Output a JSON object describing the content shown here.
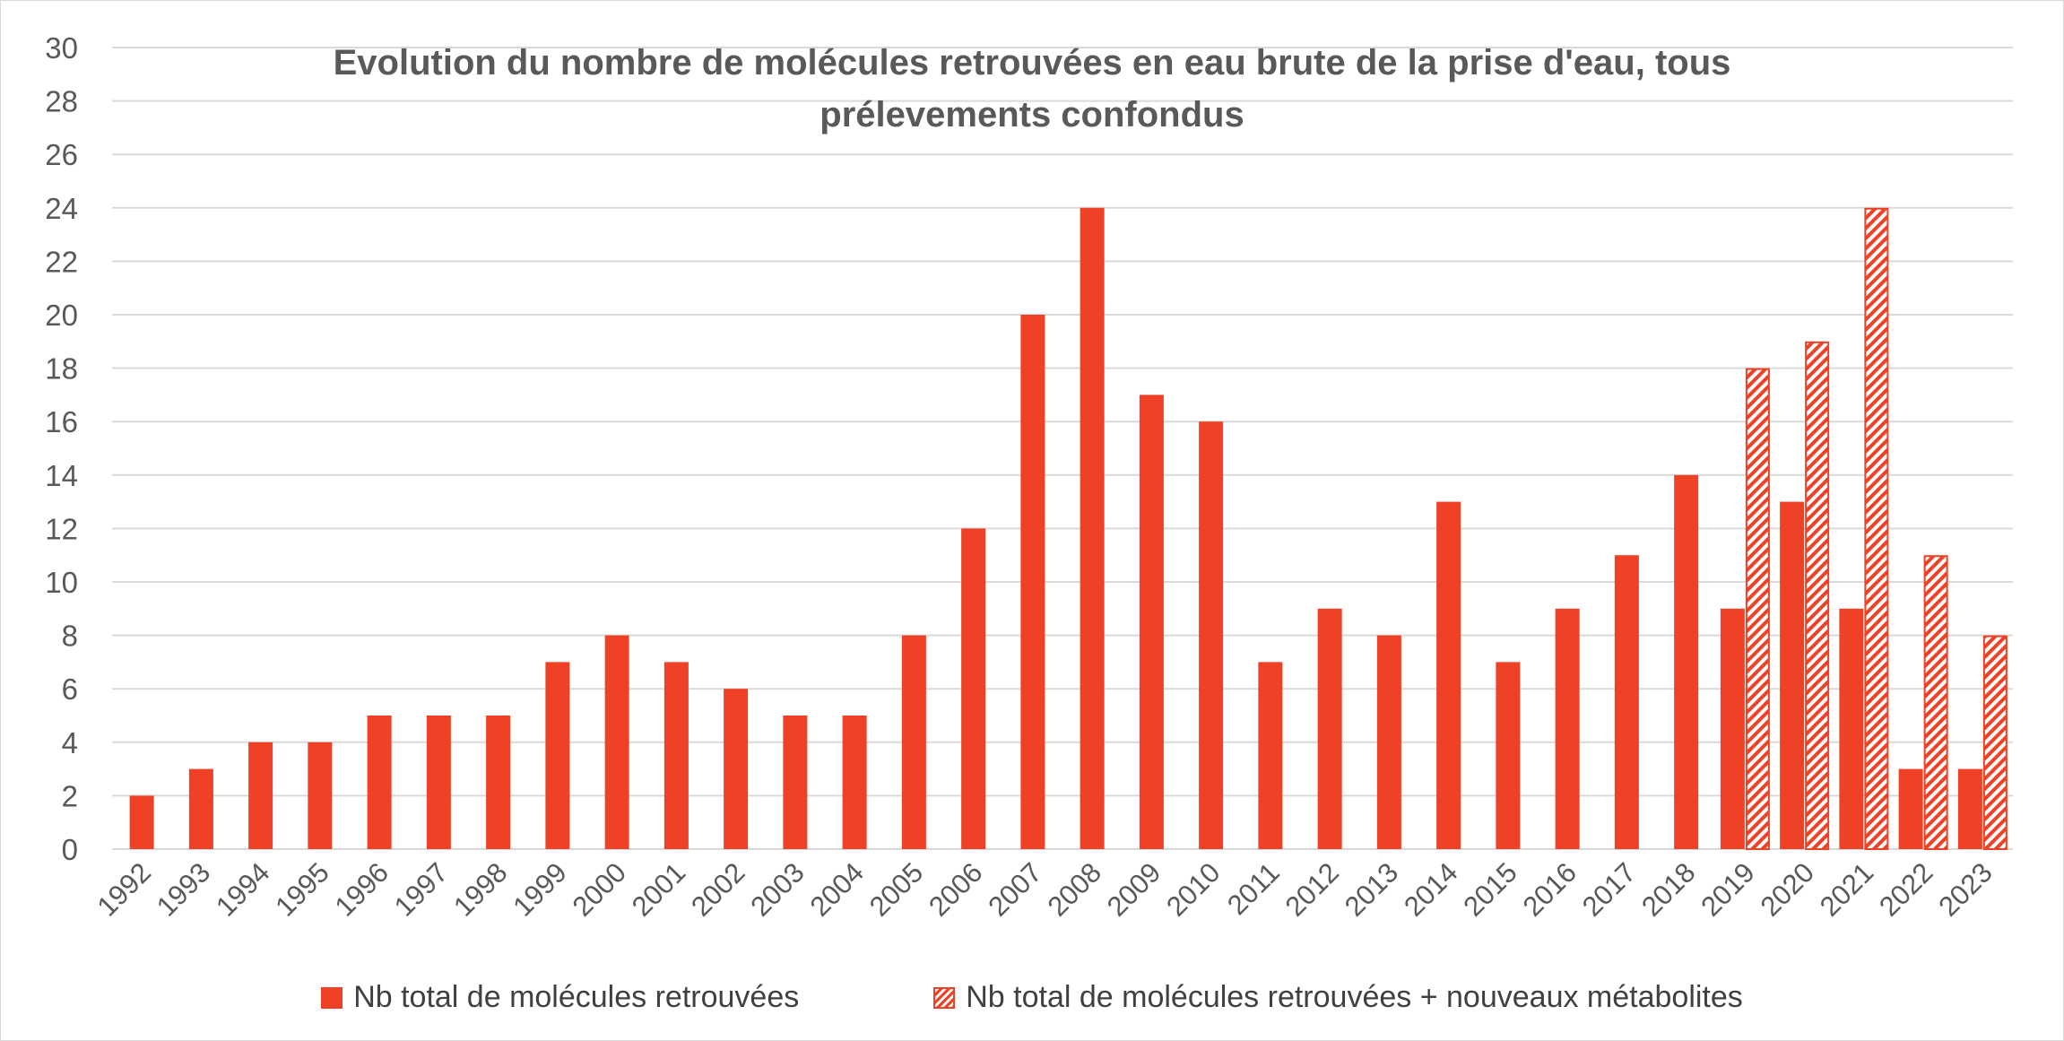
{
  "chart_data": {
    "type": "bar",
    "title": "Evolution du nombre de molécules retrouvées en eau brute de la prise d'eau, tous prélevements confondus",
    "xlabel": "",
    "ylabel": "",
    "ylim": [
      0,
      30
    ],
    "yticks": [
      0,
      2,
      4,
      6,
      8,
      10,
      12,
      14,
      16,
      18,
      20,
      22,
      24,
      26,
      28,
      30
    ],
    "grid": true,
    "legend_position": "bottom",
    "categories": [
      "1992",
      "1993",
      "1994",
      "1995",
      "1996",
      "1997",
      "1998",
      "1999",
      "2000",
      "2001",
      "2002",
      "2003",
      "2004",
      "2005",
      "2006",
      "2007",
      "2008",
      "2009",
      "2010",
      "2011",
      "2012",
      "2013",
      "2014",
      "2015",
      "2016",
      "2017",
      "2018",
      "2019",
      "2020",
      "2021",
      "2022",
      "2023"
    ],
    "series": [
      {
        "name": "Nb total de molécules retrouvées",
        "pattern": "solid",
        "color": "#EE4126",
        "values": [
          2,
          3,
          4,
          4,
          5,
          5,
          5,
          7,
          8,
          7,
          6,
          5,
          5,
          8,
          12,
          20,
          24,
          17,
          16,
          7,
          9,
          8,
          13,
          7,
          9,
          11,
          14,
          9,
          13,
          9,
          3,
          3
        ]
      },
      {
        "name": "Nb total de molécules retrouvées + nouveaux métabolites",
        "pattern": "hatched",
        "color": "#EE4126",
        "values": [
          null,
          null,
          null,
          null,
          null,
          null,
          null,
          null,
          null,
          null,
          null,
          null,
          null,
          null,
          null,
          null,
          null,
          null,
          null,
          null,
          null,
          null,
          null,
          null,
          null,
          null,
          null,
          18,
          19,
          24,
          11,
          8
        ]
      }
    ]
  }
}
